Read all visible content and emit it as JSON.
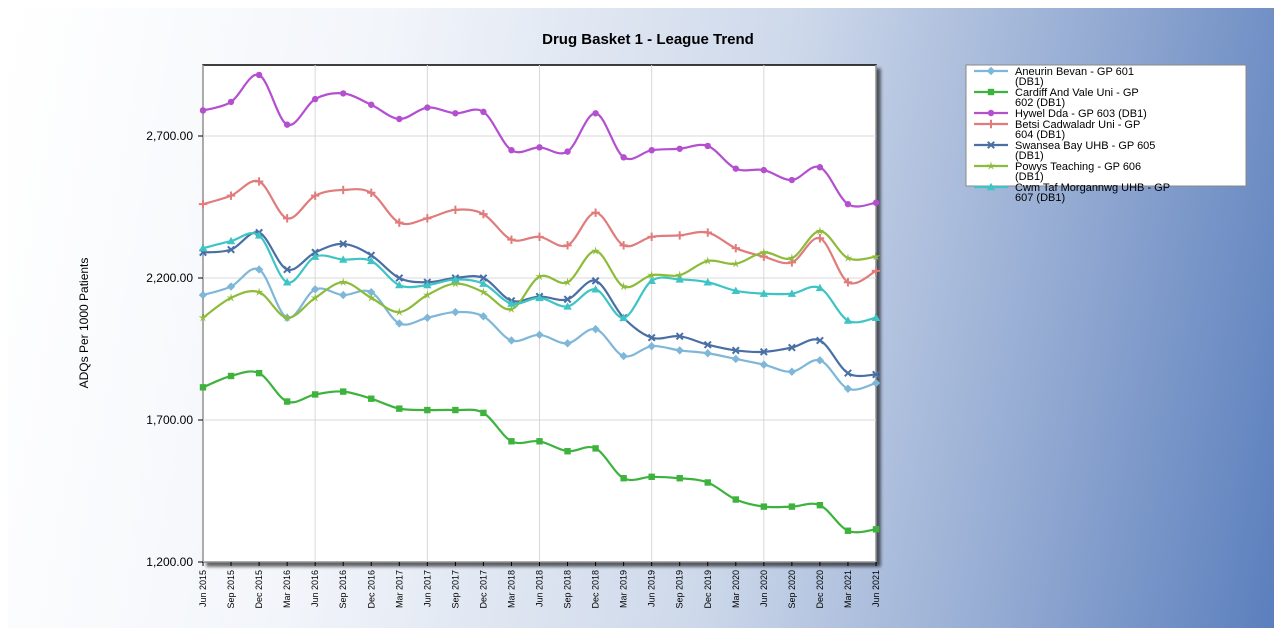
{
  "chart_data": {
    "type": "line",
    "title": "Drug Basket 1  -  League Trend",
    "xlabel": "",
    "ylabel": "ADQs Per 1000 Patients",
    "ylim": [
      1200,
      2950
    ],
    "yticks": [
      "1,200.00",
      "1,700.00",
      "2,200.00",
      "2,700.00"
    ],
    "ytick_values": [
      1200,
      1700,
      2200,
      2700
    ],
    "grid": true,
    "legend_position": "top-right",
    "categories": [
      "Jun 2015",
      "Sep 2015",
      "Dec 2015",
      "Mar 2016",
      "Jun 2016",
      "Sep 2016",
      "Dec 2016",
      "Mar 2017",
      "Jun 2017",
      "Sep 2017",
      "Dec 2017",
      "Mar 2018",
      "Jun 2018",
      "Sep 2018",
      "Dec 2018",
      "Mar 2019",
      "Jun 2019",
      "Sep 2019",
      "Dec 2019",
      "Mar 2020",
      "Jun 2020",
      "Sep 2020",
      "Dec 2020",
      "Mar 2021",
      "Jun 2021"
    ],
    "series": [
      {
        "name": "Aneurin Bevan - GP 601 (DB1)",
        "color": "#7fb7d8",
        "marker": "diamond",
        "values": [
          2140,
          2170,
          2230,
          2060,
          2160,
          2140,
          2150,
          2040,
          2060,
          2080,
          2065,
          1980,
          2000,
          1970,
          2020,
          1925,
          1960,
          1945,
          1935,
          1915,
          1895,
          1870,
          1910,
          1810,
          1830
        ]
      },
      {
        "name": "Cardiff And Vale Uni - GP 602 (DB1)",
        "color": "#3db33d",
        "marker": "square",
        "values": [
          1815,
          1855,
          1865,
          1765,
          1790,
          1800,
          1775,
          1740,
          1735,
          1735,
          1725,
          1625,
          1625,
          1590,
          1600,
          1495,
          1500,
          1495,
          1480,
          1420,
          1395,
          1395,
          1400,
          1310,
          1315
        ]
      },
      {
        "name": "Hywel Dda - GP 603 (DB1)",
        "color": "#b44fd0",
        "marker": "circle",
        "values": [
          2790,
          2820,
          2915,
          2740,
          2830,
          2850,
          2810,
          2760,
          2800,
          2780,
          2785,
          2650,
          2660,
          2645,
          2780,
          2625,
          2650,
          2655,
          2665,
          2585,
          2580,
          2545,
          2590,
          2460,
          2465
        ]
      },
      {
        "name": "Betsi Cadwaladr Uni - GP 604 (DB1)",
        "color": "#e07c7c",
        "marker": "plus",
        "values": [
          2460,
          2490,
          2540,
          2410,
          2490,
          2510,
          2500,
          2395,
          2410,
          2440,
          2425,
          2335,
          2345,
          2315,
          2430,
          2315,
          2345,
          2350,
          2360,
          2305,
          2275,
          2255,
          2340,
          2185,
          2225
        ]
      },
      {
        "name": "Swansea Bay UHB - GP 605 (DB1)",
        "color": "#4a6fa5",
        "marker": "x",
        "values": [
          2290,
          2300,
          2360,
          2230,
          2290,
          2320,
          2280,
          2200,
          2185,
          2200,
          2200,
          2120,
          2135,
          2125,
          2190,
          2060,
          1990,
          1995,
          1965,
          1945,
          1940,
          1955,
          1980,
          1865,
          1860
        ]
      },
      {
        "name": "Powys Teaching - GP 606 (DB1)",
        "color": "#8dbb3a",
        "marker": "star",
        "values": [
          2060,
          2130,
          2150,
          2060,
          2130,
          2185,
          2130,
          2080,
          2140,
          2180,
          2150,
          2090,
          2205,
          2185,
          2295,
          2170,
          2210,
          2210,
          2260,
          2250,
          2290,
          2270,
          2365,
          2270,
          2275
        ]
      },
      {
        "name": "Cwm Taf Morgannwg UHB - GP 607 (DB1)",
        "color": "#3fc4c4",
        "marker": "triangle",
        "values": [
          2305,
          2330,
          2350,
          2185,
          2275,
          2265,
          2260,
          2175,
          2175,
          2195,
          2180,
          2110,
          2130,
          2100,
          2160,
          2060,
          2190,
          2195,
          2185,
          2155,
          2145,
          2145,
          2165,
          2050,
          2060
        ]
      }
    ]
  }
}
